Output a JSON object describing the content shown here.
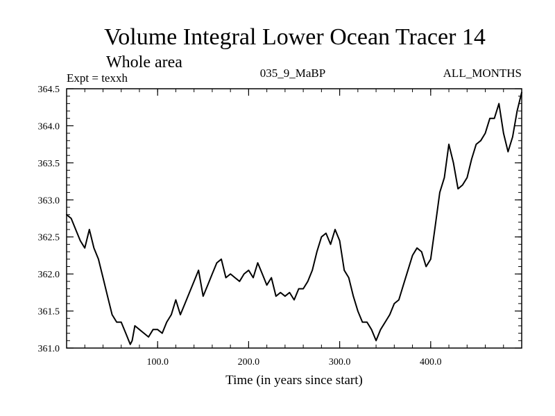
{
  "chart_data": {
    "type": "line",
    "title": "Volume Integral Lower Ocean Tracer 14",
    "subtitle": "Whole area",
    "expt_label": "Expt = texxh",
    "run_label": "035_9_MaBP",
    "months_label": "ALL_MONTHS",
    "xlabel": "Time (in years since start)",
    "ylabel": "",
    "xlim": [
      0,
      500
    ],
    "ylim": [
      361.0,
      364.5
    ],
    "x_ticks": [
      100,
      200,
      300,
      400
    ],
    "x_tick_labels": [
      "100.0",
      "200.0",
      "300.0",
      "400.0"
    ],
    "y_ticks": [
      361.0,
      361.5,
      362.0,
      362.5,
      363.0,
      363.5,
      364.0,
      364.5
    ],
    "y_tick_labels": [
      "361.0",
      "361.5",
      "362.0",
      "362.5",
      "363.0",
      "363.5",
      "364.0",
      "364.5"
    ],
    "grid": false,
    "line_color": "#000000",
    "series": [
      {
        "name": "Lower Ocean Tracer 14",
        "x": [
          0,
          5,
          10,
          15,
          20,
          25,
          30,
          35,
          40,
          45,
          50,
          55,
          60,
          65,
          70,
          72,
          75,
          80,
          85,
          90,
          95,
          100,
          105,
          110,
          115,
          120,
          125,
          130,
          135,
          140,
          145,
          150,
          155,
          160,
          165,
          170,
          175,
          180,
          185,
          190,
          195,
          200,
          205,
          210,
          215,
          220,
          225,
          230,
          235,
          240,
          245,
          250,
          255,
          260,
          265,
          270,
          275,
          280,
          285,
          290,
          295,
          300,
          305,
          310,
          315,
          320,
          325,
          330,
          335,
          340,
          345,
          350,
          355,
          360,
          365,
          370,
          375,
          380,
          385,
          390,
          395,
          400,
          405,
          410,
          415,
          420,
          425,
          430,
          435,
          440,
          445,
          450,
          455,
          460,
          465,
          470,
          475,
          480,
          485,
          490,
          495,
          500
        ],
        "values": [
          362.8,
          362.75,
          362.6,
          362.45,
          362.35,
          362.6,
          362.35,
          362.2,
          361.95,
          361.7,
          361.45,
          361.35,
          361.35,
          361.2,
          361.05,
          361.1,
          361.3,
          361.25,
          361.2,
          361.15,
          361.25,
          361.25,
          361.2,
          361.35,
          361.45,
          361.65,
          361.45,
          361.6,
          361.75,
          361.9,
          362.05,
          361.7,
          361.85,
          362.0,
          362.15,
          362.2,
          361.95,
          362.0,
          361.95,
          361.9,
          362.0,
          362.05,
          361.95,
          362.15,
          362.0,
          361.85,
          361.95,
          361.7,
          361.75,
          361.7,
          361.75,
          361.65,
          361.8,
          361.8,
          361.9,
          362.05,
          362.3,
          362.5,
          362.55,
          362.4,
          362.6,
          362.45,
          362.05,
          361.95,
          361.7,
          361.5,
          361.35,
          361.35,
          361.25,
          361.1,
          361.25,
          361.35,
          361.45,
          361.6,
          361.65,
          361.85,
          362.05,
          362.25,
          362.35,
          362.3,
          362.1,
          362.2,
          362.65,
          363.1,
          363.3,
          363.75,
          363.5,
          363.15,
          363.2,
          363.3,
          363.55,
          363.75,
          363.8,
          363.9,
          364.1,
          364.1,
          364.3,
          363.9,
          363.65,
          363.85,
          364.2,
          364.45
        ]
      }
    ]
  }
}
